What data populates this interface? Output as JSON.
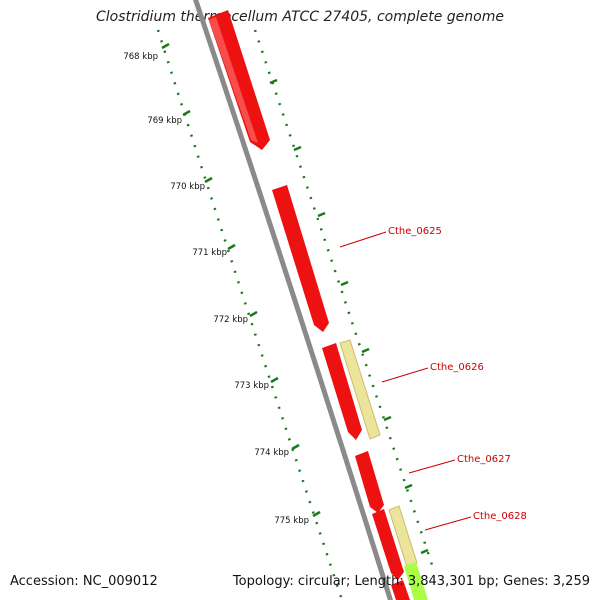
{
  "title": "Clostridium thermocellum ATCC 27405, complete genome",
  "footer": {
    "accession": "Accession: NC_009012",
    "summary": "Topology: circular; Length: 3,843,301 bp; Genes: 3,259"
  },
  "ruler": {
    "labels": [
      "768 kbp",
      "769 kbp",
      "770 kbp",
      "771 kbp",
      "772 kbp",
      "773 kbp",
      "774 kbp",
      "775 kbp"
    ]
  },
  "genes": [
    {
      "label": "Cthe_0625"
    },
    {
      "label": "Cthe_0626"
    },
    {
      "label": "Cthe_0627"
    },
    {
      "label": "Cthe_0628"
    }
  ],
  "colors": {
    "cds": "#ee1111",
    "cds_highlight": "#ff7777",
    "other_feature": "#ede49b",
    "other_feature_edge": "#c9bd6a",
    "backbone": "#8a8a8a",
    "tick": "#1a7a1a",
    "label": "#cc0000",
    "extra_feature": "#aaff44"
  }
}
